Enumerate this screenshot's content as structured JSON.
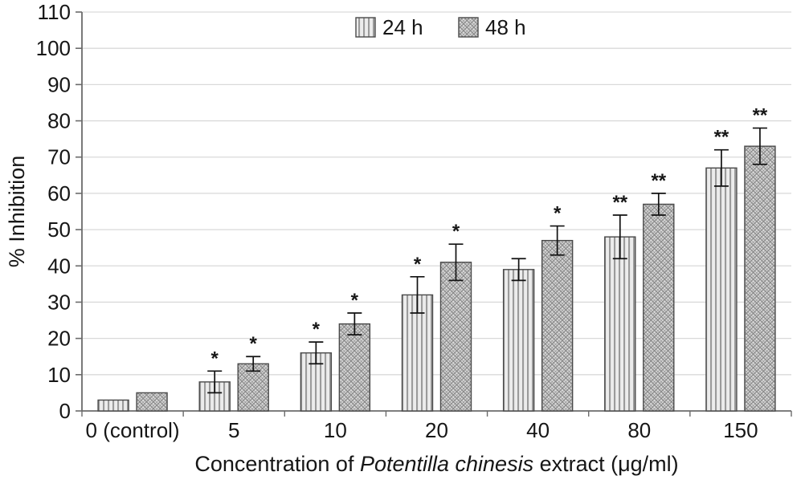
{
  "chart_data": {
    "type": "bar",
    "title": "",
    "categories": [
      "0 (control)",
      "5",
      "10",
      "20",
      "40",
      "80",
      "150"
    ],
    "series": [
      {
        "name": "24 h",
        "values": [
          3,
          8,
          16,
          32,
          39,
          48,
          67
        ],
        "errors": [
          0,
          3,
          3,
          5,
          3,
          6,
          5
        ],
        "annotations": [
          "",
          "*",
          "*",
          "*",
          "",
          "**",
          "**"
        ],
        "pattern": "vertical-stripes"
      },
      {
        "name": "48 h",
        "values": [
          5,
          13,
          24,
          41,
          47,
          57,
          73
        ],
        "errors": [
          0,
          2,
          3,
          5,
          4,
          3,
          5
        ],
        "annotations": [
          "",
          "*",
          "*",
          "*",
          "*",
          "**",
          "**"
        ],
        "pattern": "diagonal-crosshatch"
      }
    ],
    "xlabel_parts": {
      "prefix": "Concentration of ",
      "italic": "Potentilla chinesis",
      "suffix": " extract (μg/ml)"
    },
    "ylabel": "% Inhibition",
    "ylim": [
      0,
      110
    ],
    "ytick_step": 10,
    "grid": true,
    "legend_position": "top-center",
    "colors": {
      "bar_fill_light": "#ececec",
      "bar_fill_mid": "#dedede",
      "hatch_stroke_24h": "#9b9b9b",
      "hatch_stroke_48h": "#878787",
      "bar_border": "#4a4a4a",
      "gridline": "#d9d9d9",
      "axis": "#6b6b6b",
      "text": "#161616",
      "error_bar": "#111111"
    }
  }
}
